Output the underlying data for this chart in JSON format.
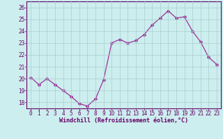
{
  "x": [
    0,
    1,
    2,
    3,
    4,
    5,
    6,
    7,
    8,
    9,
    10,
    11,
    12,
    13,
    14,
    15,
    16,
    17,
    18,
    19,
    20,
    21,
    22,
    23
  ],
  "y": [
    20.1,
    19.5,
    20.0,
    19.5,
    19.0,
    18.5,
    17.9,
    17.7,
    18.3,
    19.9,
    23.0,
    23.3,
    23.0,
    23.2,
    23.7,
    24.5,
    25.1,
    25.7,
    25.1,
    25.2,
    24.0,
    23.1,
    21.8,
    21.2
  ],
  "line_color": "#993399",
  "marker": "D",
  "marker_size": 2.5,
  "bg_color": "#cceeee",
  "grid_color": "#aacccc",
  "xlabel": "Windchill (Refroidissement éolien,°C)",
  "xlim": [
    -0.5,
    23.5
  ],
  "ylim": [
    17.5,
    26.5
  ],
  "yticks": [
    18,
    19,
    20,
    21,
    22,
    23,
    24,
    25,
    26
  ],
  "xticks": [
    0,
    1,
    2,
    3,
    4,
    5,
    6,
    7,
    8,
    9,
    10,
    11,
    12,
    13,
    14,
    15,
    16,
    17,
    18,
    19,
    20,
    21,
    22,
    23
  ],
  "tick_fontsize": 5.5,
  "label_fontsize": 6.0,
  "text_color": "#660066"
}
